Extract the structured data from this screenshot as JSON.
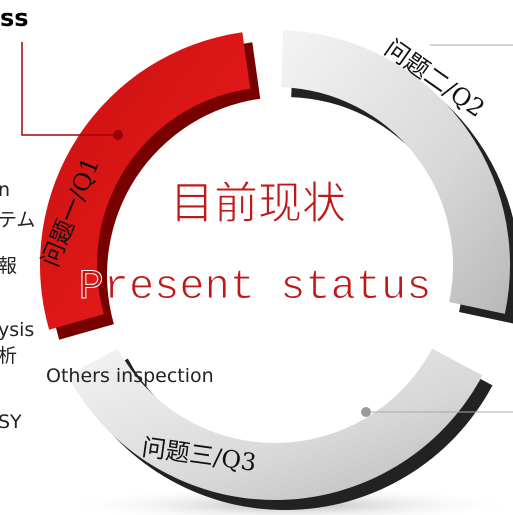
{
  "header": {
    "title": "ss"
  },
  "side_labels": [
    "n",
    "テム",
    "報",
    "ysis",
    "析",
    "Others inspection",
    "SY"
  ],
  "segments": [
    {
      "label": "问题一/Q1"
    },
    {
      "label": "问题二/Q2"
    },
    {
      "label": "问题三/Q3"
    }
  ],
  "center": {
    "title": "目前现状",
    "subtitle": "Present status"
  }
}
